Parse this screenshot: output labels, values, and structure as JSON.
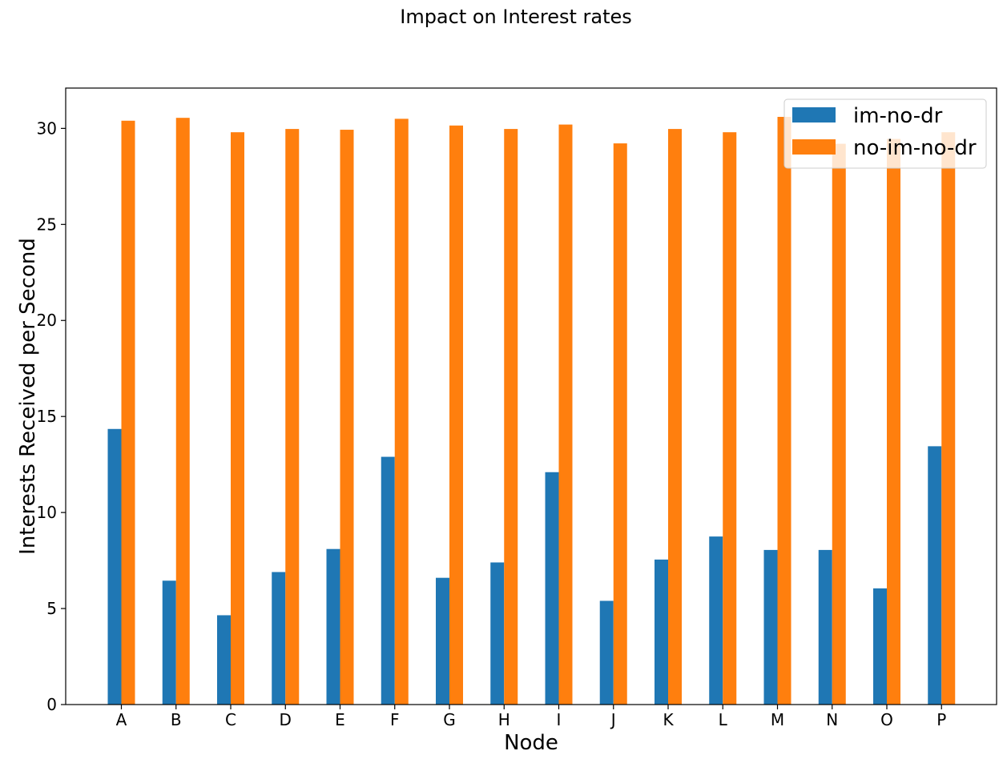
{
  "chart_data": {
    "type": "bar",
    "title": "Impact on Interest rates",
    "xlabel": "Node",
    "ylabel": "Interests Received per Second",
    "categories": [
      "A",
      "B",
      "C",
      "D",
      "E",
      "F",
      "G",
      "H",
      "I",
      "J",
      "K",
      "L",
      "M",
      "N",
      "O",
      "P"
    ],
    "series": [
      {
        "name": "im-no-dr",
        "color": "#1f77b4",
        "values": [
          14.35,
          6.45,
          4.65,
          6.9,
          8.1,
          12.9,
          6.6,
          7.4,
          12.1,
          5.4,
          7.55,
          8.75,
          8.05,
          8.05,
          6.05,
          13.45
        ]
      },
      {
        "name": "no-im-no-dr",
        "color": "#ff7f0e",
        "values": [
          30.4,
          30.55,
          29.8,
          29.97,
          29.93,
          30.5,
          30.15,
          29.97,
          30.2,
          29.22,
          29.97,
          29.8,
          30.6,
          29.2,
          29.45,
          29.8
        ]
      }
    ],
    "ylim": [
      0,
      32.1
    ],
    "yticks": [
      0,
      5,
      10,
      15,
      20,
      25,
      30
    ],
    "grid": false,
    "legend": "upper-right"
  }
}
